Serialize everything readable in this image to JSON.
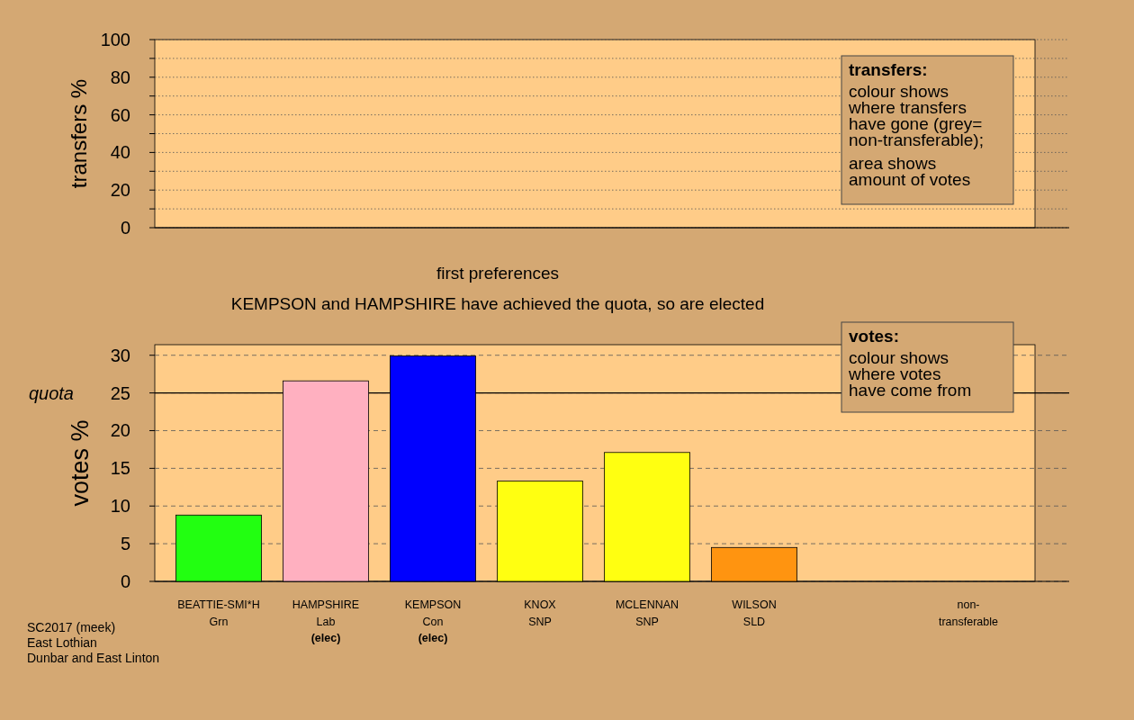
{
  "chart_data": [
    {
      "type": "bar",
      "ylabel": "transfers %",
      "categories": [
        null,
        null,
        null,
        null,
        null,
        null,
        null,
        null
      ],
      "values": [
        null,
        null,
        null,
        null,
        null,
        null,
        null,
        null
      ],
      "ylim": [
        0,
        100
      ],
      "yticks": [
        0,
        {
          "value": 10,
          "label": null
        },
        20,
        {
          "value": 30,
          "label": null
        },
        40,
        {
          "value": 50,
          "label": null
        },
        60,
        {
          "value": 70,
          "label": null
        },
        80,
        {
          "value": 90,
          "label": null
        },
        100
      ],
      "grid": "y",
      "tick_labels": "y",
      "annotations": [
        "transfers:\ncolour shows\nwhere transfers\nhave gone (grey=\nnon-transferable);\n\narea shows\namount of votes"
      ]
    },
    {
      "type": "bar",
      "title": "first preferences",
      "subtitle": "KEMPSON and HAMPSHIRE have achieved the quota, so are elected",
      "ylabel": "votes %",
      "categories": [
        "BEATTIE-SMI*H\nGrn",
        "HAMPSHIRE\nLab\n(elec)",
        "KEMPSON\nCon\n(elec)",
        "KNOX\nSNP",
        "MCLENNAN\nSNP",
        "WILSON\nSLD",
        null,
        "non-\ntransferable"
      ],
      "values": [
        8.8,
        26.6,
        29.9,
        13.3,
        17.1,
        4.5,
        null,
        0
      ],
      "colors": [
        "#22ff11",
        "#ffb0c0",
        "#0000ff",
        "#ffff11",
        "#ffff11",
        "#ff9410",
        null,
        "#888888"
      ],
      "ylim": [
        0,
        31.4
      ],
      "yticks": [
        0,
        5,
        10,
        15,
        20,
        25,
        30
      ],
      "grid": "y",
      "ref_lines": [
        {
          "axis": "y",
          "value": 25,
          "label": "quota"
        }
      ],
      "annotations": [
        "votes:\ncolour shows\nwhere votes\nhave come from",
        "SC2017 (meek)\nEast Lothian\nDunbar and East Linton"
      ]
    }
  ]
}
